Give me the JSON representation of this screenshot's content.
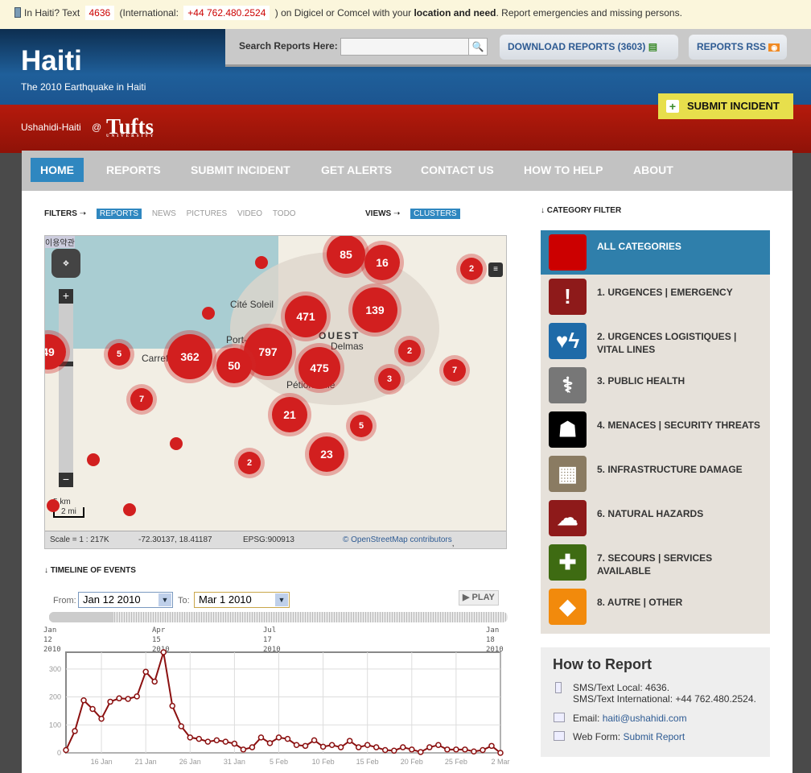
{
  "alert": {
    "pre": "In Haiti? Text",
    "short_code": "4636",
    "intl_pre": "(International:",
    "intl_number": "+44 762.480.2524",
    "intl_post": ") on Digicel or Comcel with your",
    "bold": "location and need",
    "post": ". Report emergencies and missing persons."
  },
  "header": {
    "title": "Haiti",
    "subtitle": "The 2010 Earthquake in Haiti",
    "search_label": "Search Reports Here:",
    "search_value": "",
    "download_label": "DOWNLOAD REPORTS (3603)",
    "rss_label": "REPORTS RSS",
    "deployment": "Ushahidi-Haiti",
    "at": "@",
    "logo": "Tufts",
    "logo_sub": "UNIVERSITY",
    "submit_label": "SUBMIT INCIDENT"
  },
  "nav": [
    {
      "label": "HOME",
      "active": true
    },
    {
      "label": "REPORTS"
    },
    {
      "label": "SUBMIT INCIDENT"
    },
    {
      "label": "GET ALERTS"
    },
    {
      "label": "CONTACT US"
    },
    {
      "label": "HOW TO HELP"
    },
    {
      "label": "ABOUT"
    }
  ],
  "filters": {
    "label": "FILTERS",
    "items": [
      "REPORTS",
      "NEWS",
      "PICTURES",
      "VIDEO",
      "TODO"
    ],
    "active": "REPORTS",
    "views_label": "VIEWS",
    "view": "CLUSTERS"
  },
  "map": {
    "terms": "이용약관",
    "places": [
      "Cité Soleil",
      "Port-au-Prince",
      "OUEST",
      "Delmas",
      "Pétion-Ville",
      "Carrefour"
    ],
    "clusters": [
      85,
      16,
      2,
      471,
      139,
      797,
      362,
      50,
      475,
      49,
      5,
      2,
      3,
      7,
      7,
      21,
      5,
      23,
      2
    ],
    "scale_km": "5 km",
    "scale_mi": "2 mi",
    "scale": "Scale = 1 : 217K",
    "coords": "-72.30137, 18.41187",
    "projection": "EPSG:900913",
    "attribution_link": "© OpenStreetMap contributors",
    "attribution_license": ", CC-BY-SA"
  },
  "timeline": {
    "title": "TIMELINE OF EVENTS",
    "from_label": "From:",
    "from": "Jan 12 2010",
    "to_label": "To:",
    "to": "Mar 1 2010",
    "play": "PLAY",
    "slider_labels": [
      "Jan 12 2010",
      "Apr 15 2010",
      "Jul 17 2010",
      "Jan 18 2010"
    ]
  },
  "chart_data": {
    "type": "line",
    "ylim": [
      0,
      360
    ],
    "yticks": [
      0,
      100,
      200,
      300
    ],
    "xtick_labels": [
      "16 Jan",
      "21 Jan",
      "26 Jan",
      "31 Jan",
      "5 Feb",
      "10 Feb",
      "15 Feb",
      "20 Feb",
      "25 Feb",
      "2 Mar"
    ],
    "grid": true,
    "color": "#8b1010",
    "x": [
      "2010-01-12",
      "2010-01-13",
      "2010-01-14",
      "2010-01-15",
      "2010-01-16",
      "2010-01-17",
      "2010-01-18",
      "2010-01-19",
      "2010-01-20",
      "2010-01-21",
      "2010-01-22",
      "2010-01-23",
      "2010-01-24",
      "2010-01-25",
      "2010-01-26",
      "2010-01-27",
      "2010-01-28",
      "2010-01-29",
      "2010-01-30",
      "2010-01-31",
      "2010-02-01",
      "2010-02-02",
      "2010-02-03",
      "2010-02-04",
      "2010-02-05",
      "2010-02-06",
      "2010-02-07",
      "2010-02-08",
      "2010-02-09",
      "2010-02-10",
      "2010-02-11",
      "2010-02-12",
      "2010-02-13",
      "2010-02-14",
      "2010-02-15",
      "2010-02-16",
      "2010-02-17",
      "2010-02-18",
      "2010-02-19",
      "2010-02-20",
      "2010-02-21",
      "2010-02-22",
      "2010-02-23",
      "2010-02-24",
      "2010-02-25",
      "2010-02-26",
      "2010-02-27",
      "2010-02-28",
      "2010-03-01",
      "2010-03-02"
    ],
    "values": [
      10,
      78,
      188,
      157,
      122,
      183,
      195,
      193,
      202,
      290,
      255,
      360,
      168,
      95,
      55,
      50,
      40,
      45,
      40,
      33,
      12,
      20,
      55,
      35,
      55,
      50,
      28,
      25,
      45,
      22,
      28,
      20,
      43,
      20,
      28,
      20,
      10,
      8,
      20,
      12,
      3,
      20,
      28,
      12,
      12,
      12,
      5,
      10,
      25,
      0
    ]
  },
  "categories": {
    "title": "CATEGORY FILTER",
    "items": [
      {
        "label": "ALL CATEGORIES",
        "color": "#cc0000",
        "icon": "square-icon"
      },
      {
        "label": "1. URGENCES | EMERGENCY",
        "color": "#8e1a1a",
        "icon": "exclamation-icon",
        "glyph": "!"
      },
      {
        "label": "2. URGENCES LOGISTIQUES | VITAL LINES",
        "color": "#1e6aa8",
        "icon": "water-power-icon",
        "glyph": "♥ϟ"
      },
      {
        "label": "3. PUBLIC HEALTH",
        "color": "#777777",
        "icon": "caduceus-icon",
        "glyph": "⚕"
      },
      {
        "label": "4. MENACES | SECURITY THREATS",
        "color": "#000000",
        "icon": "masked-person-icon",
        "glyph": "☗"
      },
      {
        "label": "5. INFRASTRUCTURE DAMAGE",
        "color": "#8a7b62",
        "icon": "building-icon",
        "glyph": "▦"
      },
      {
        "label": "6. NATURAL HAZARDS",
        "color": "#8e1a1a",
        "icon": "storm-cloud-icon",
        "glyph": "☁"
      },
      {
        "label": "7. SECOURS | SERVICES AVAILABLE",
        "color": "#3e6b12",
        "icon": "plus-icon",
        "glyph": "✚"
      },
      {
        "label": "8. AUTRE | OTHER",
        "color": "#f28a0c",
        "icon": "diamond-icon",
        "glyph": "◆"
      }
    ]
  },
  "how": {
    "title": "How to Report",
    "sms_local": "SMS/Text Local: 4636.",
    "sms_intl": "SMS/Text International: +44 762.480.2524.",
    "email_label": "Email: ",
    "email": "haiti@ushahidi.com",
    "web_label": "Web Form: ",
    "web_link": "Submit Report"
  }
}
